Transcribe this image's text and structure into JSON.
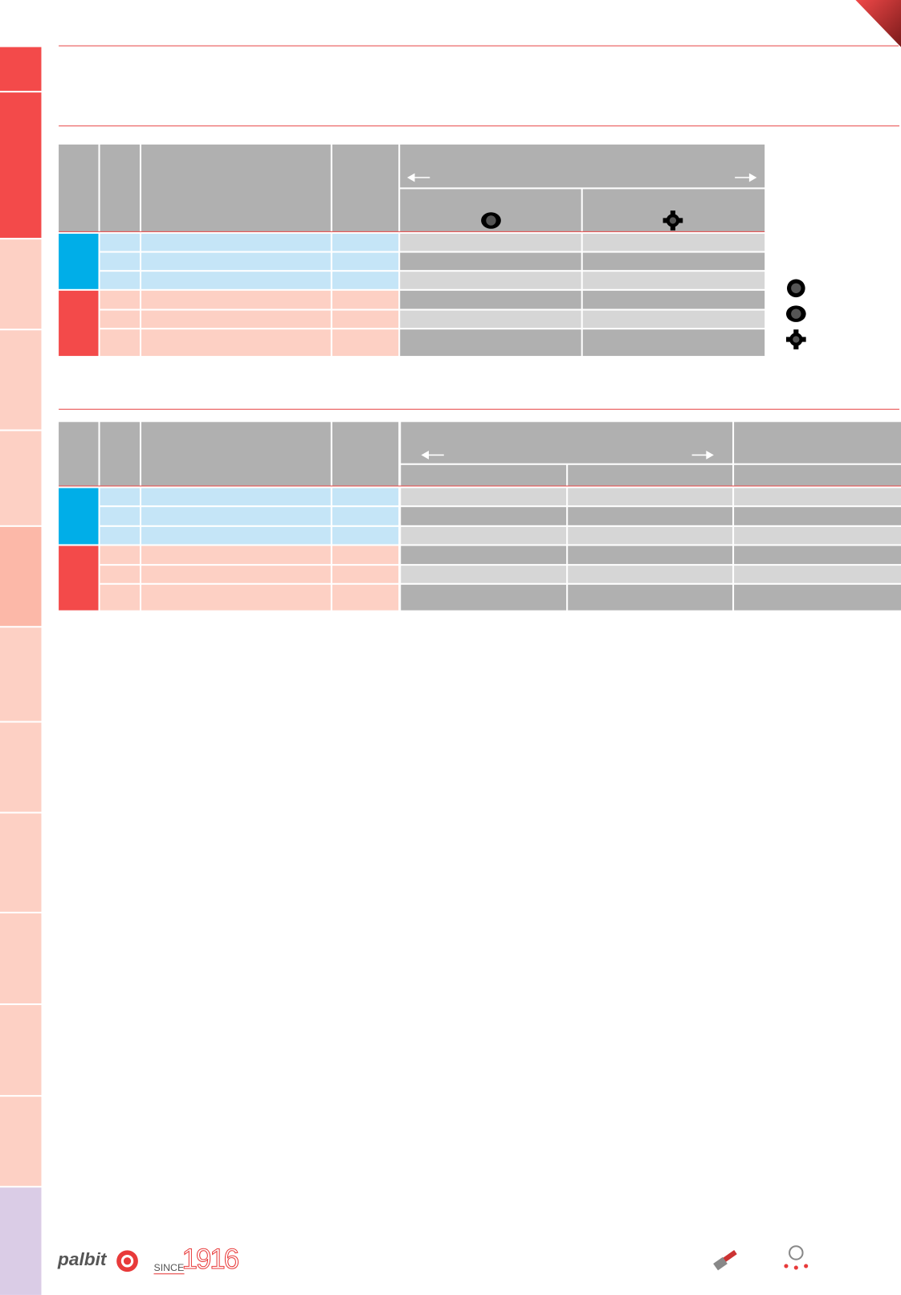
{
  "footer": {
    "brand": "palbit",
    "since": "SINCE",
    "year": "1916"
  }
}
